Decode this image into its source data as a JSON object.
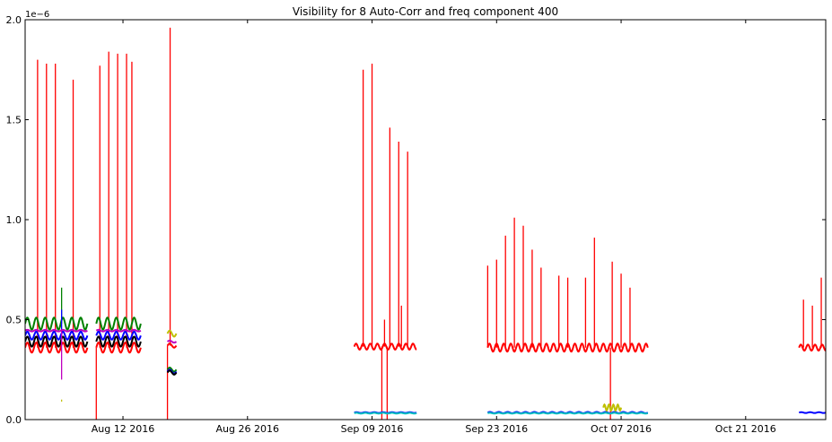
{
  "chart_data": {
    "type": "line",
    "title": "Visibility for 8 Auto-Corr and freq component 400",
    "xlabel": "",
    "ylabel": "",
    "y_offset_label": "1e−6",
    "ylim": [
      0,
      2.0
    ],
    "xlim": [
      "2016-08-01",
      "2016-10-30"
    ],
    "x_ticks": [
      {
        "date": "2016-08-12",
        "label": "Aug 12 2016"
      },
      {
        "date": "2016-08-26",
        "label": "Aug 26 2016"
      },
      {
        "date": "2016-09-09",
        "label": "Sep 09 2016"
      },
      {
        "date": "2016-09-23",
        "label": "Sep 23 2016"
      },
      {
        "date": "2016-10-07",
        "label": "Oct 07 2016"
      },
      {
        "date": "2016-10-21",
        "label": "Oct 21 2016"
      }
    ],
    "y_ticks": [
      {
        "value": 0.0,
        "label": "0.0"
      },
      {
        "value": 0.5,
        "label": "0.5"
      },
      {
        "value": 1.0,
        "label": "1.0"
      },
      {
        "value": 1.5,
        "label": "1.5"
      },
      {
        "value": 2.0,
        "label": "2.0"
      }
    ],
    "grid": false,
    "legend": "none",
    "series": [
      {
        "color": "#ff0000",
        "segments": [
          {
            "start": "2016-08-01",
            "end": "2016-08-08",
            "base": 0.36,
            "amp": 0.025,
            "period": 1.0
          },
          {
            "start": "2016-08-09",
            "end": "2016-08-14",
            "base": 0.36,
            "amp": 0.025,
            "period": 1.0
          },
          {
            "start": "2016-08-17",
            "end": "2016-08-18",
            "base": 0.37,
            "amp": 0.01,
            "period": 1.0
          },
          {
            "start": "2016-09-07",
            "end": "2016-09-14",
            "base": 0.365,
            "amp": 0.015,
            "period": 0.8
          },
          {
            "start": "2016-09-22",
            "end": "2016-10-10",
            "base": 0.36,
            "amp": 0.02,
            "period": 0.8
          },
          {
            "start": "2016-10-27",
            "end": "2016-10-30",
            "base": 0.36,
            "amp": 0.015,
            "period": 0.8
          }
        ],
        "spikes": [
          {
            "date": "2016-08-02.4",
            "value": 1.8
          },
          {
            "date": "2016-08-03.4",
            "value": 1.78
          },
          {
            "date": "2016-08-04.4",
            "value": 1.78
          },
          {
            "date": "2016-08-06.4",
            "value": 1.7
          },
          {
            "date": "2016-08-09.4",
            "value": 1.77
          },
          {
            "date": "2016-08-10.4",
            "value": 1.84
          },
          {
            "date": "2016-08-11.4",
            "value": 1.83
          },
          {
            "date": "2016-08-12.4",
            "value": 1.83
          },
          {
            "date": "2016-08-13.0",
            "value": 1.79
          },
          {
            "date": "2016-08-17.3",
            "value": 1.96
          },
          {
            "date": "2016-09-08.0",
            "value": 1.75
          },
          {
            "date": "2016-09-09.0",
            "value": 1.78
          },
          {
            "date": "2016-09-10.4",
            "value": 0.5
          },
          {
            "date": "2016-09-11.0",
            "value": 1.46
          },
          {
            "date": "2016-09-12.0",
            "value": 1.39
          },
          {
            "date": "2016-09-12.3",
            "value": 0.57
          },
          {
            "date": "2016-09-13.0",
            "value": 1.34
          },
          {
            "date": "2016-09-22.0",
            "value": 0.77
          },
          {
            "date": "2016-09-23.0",
            "value": 0.8
          },
          {
            "date": "2016-09-24.0",
            "value": 0.92
          },
          {
            "date": "2016-09-25.0",
            "value": 1.01
          },
          {
            "date": "2016-09-26.0",
            "value": 0.97
          },
          {
            "date": "2016-09-27.0",
            "value": 0.85
          },
          {
            "date": "2016-09-28.0",
            "value": 0.76
          },
          {
            "date": "2016-09-30.0",
            "value": 0.72
          },
          {
            "date": "2016-10-01.0",
            "value": 0.71
          },
          {
            "date": "2016-10-03.0",
            "value": 0.71
          },
          {
            "date": "2016-10-04.0",
            "value": 0.91
          },
          {
            "date": "2016-10-06.0",
            "value": 0.79
          },
          {
            "date": "2016-10-07.0",
            "value": 0.73
          },
          {
            "date": "2016-10-08.0",
            "value": 0.66
          },
          {
            "date": "2016-10-27.5",
            "value": 0.6
          },
          {
            "date": "2016-10-28.5",
            "value": 0.57
          },
          {
            "date": "2016-10-29.5",
            "value": 0.71
          }
        ],
        "drops": [
          {
            "date": "2016-08-09.0",
            "value": 0.0
          },
          {
            "date": "2016-08-17.0",
            "value": 0.0
          },
          {
            "date": "2016-09-10.1",
            "value": 0.0
          },
          {
            "date": "2016-09-10.7",
            "value": 0.0
          },
          {
            "date": "2016-10-05.8",
            "value": 0.0
          }
        ]
      },
      {
        "color": "#008000",
        "segments": [
          {
            "start": "2016-08-01",
            "end": "2016-08-08",
            "base": 0.48,
            "amp": 0.03,
            "period": 1.0
          },
          {
            "start": "2016-08-09",
            "end": "2016-08-14",
            "base": 0.48,
            "amp": 0.03,
            "period": 1.0
          },
          {
            "start": "2016-08-17",
            "end": "2016-08-18",
            "base": 0.25,
            "amp": 0.01,
            "period": 1.0
          }
        ],
        "spikes": [
          {
            "date": "2016-08-05.1",
            "value": 0.66
          }
        ],
        "drops": []
      },
      {
        "color": "#0000ff",
        "segments": [
          {
            "start": "2016-08-01",
            "end": "2016-08-08",
            "base": 0.42,
            "amp": 0.02,
            "period": 1.0
          },
          {
            "start": "2016-08-09",
            "end": "2016-08-14",
            "base": 0.42,
            "amp": 0.02,
            "period": 1.0
          },
          {
            "start": "2016-08-17",
            "end": "2016-08-18",
            "base": 0.24,
            "amp": 0.01,
            "period": 1.0
          },
          {
            "start": "2016-09-07",
            "end": "2016-09-14",
            "base": 0.035,
            "amp": 0.002,
            "period": 1.0
          },
          {
            "start": "2016-09-22",
            "end": "2016-10-10",
            "base": 0.035,
            "amp": 0.003,
            "period": 1.0
          },
          {
            "start": "2016-10-27",
            "end": "2016-10-30",
            "base": 0.035,
            "amp": 0.002,
            "period": 1.0
          }
        ],
        "spikes": [
          {
            "date": "2016-08-05.1",
            "value": 0.55
          }
        ],
        "drops": []
      },
      {
        "color": "#000000",
        "segments": [
          {
            "start": "2016-08-01",
            "end": "2016-08-08",
            "base": 0.39,
            "amp": 0.025,
            "period": 1.0
          },
          {
            "start": "2016-08-09",
            "end": "2016-08-14",
            "base": 0.39,
            "amp": 0.025,
            "period": 1.0
          },
          {
            "start": "2016-08-17",
            "end": "2016-08-18",
            "base": 0.235,
            "amp": 0.01,
            "period": 1.0
          }
        ],
        "spikes": [],
        "drops": []
      },
      {
        "color": "#bfbf00",
        "segments": [
          {
            "start": "2016-08-17",
            "end": "2016-08-18",
            "base": 0.43,
            "amp": 0.015,
            "period": 1.0
          },
          {
            "start": "2016-10-05",
            "end": "2016-10-07",
            "base": 0.06,
            "amp": 0.015,
            "period": 0.5
          }
        ],
        "spikes": [
          {
            "date": "2016-08-05.1",
            "value": 0.1
          }
        ],
        "drops": []
      },
      {
        "color": "#bf00bf",
        "segments": [
          {
            "start": "2016-08-01",
            "end": "2016-08-08",
            "base": 0.445,
            "amp": 0.004,
            "period": 1.0
          },
          {
            "start": "2016-08-09",
            "end": "2016-08-14",
            "base": 0.445,
            "amp": 0.004,
            "period": 1.0
          },
          {
            "start": "2016-08-17",
            "end": "2016-08-18",
            "base": 0.39,
            "amp": 0.005,
            "period": 1.0
          }
        ],
        "spikes": [
          {
            "date": "2016-08-05.1",
            "value": 0.2
          }
        ],
        "drops": []
      },
      {
        "color": "#00bfbf",
        "segments": [
          {
            "start": "2016-09-07",
            "end": "2016-09-14",
            "base": 0.032,
            "amp": 0.002,
            "period": 1.0
          },
          {
            "start": "2016-09-22",
            "end": "2016-10-10",
            "base": 0.032,
            "amp": 0.002,
            "period": 1.0
          }
        ],
        "spikes": [],
        "drops": []
      }
    ]
  }
}
